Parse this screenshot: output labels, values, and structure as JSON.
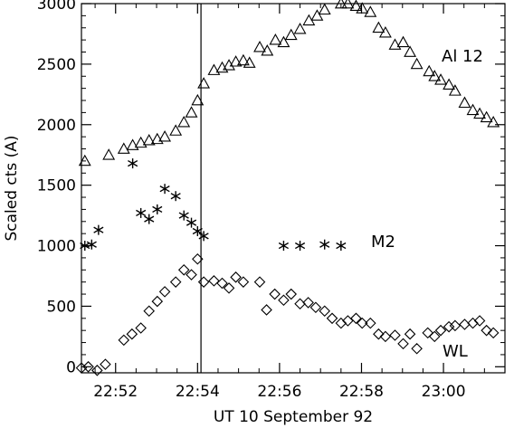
{
  "chart_data": {
    "type": "scatter",
    "title": "",
    "xlabel": "UT 10 September 92",
    "ylabel": "Scaled cts (A)",
    "xlim": [
      "22:51:10",
      "23:01:30"
    ],
    "ylim": [
      -50,
      3000
    ],
    "x_ticks": [
      "22:52",
      "22:54",
      "22:56",
      "22:58",
      "23:00"
    ],
    "y_ticks": [
      0,
      500,
      1000,
      1500,
      2000,
      2500,
      3000
    ],
    "grid": false,
    "vertical_line": "22:54:05",
    "series": [
      {
        "name": "Al 12",
        "marker": "triangle",
        "x": [
          "22:51:15",
          "22:51:50",
          "22:52:12",
          "22:52:25",
          "22:52:37",
          "22:52:49",
          "22:53:01",
          "22:53:12",
          "22:53:28",
          "22:53:40",
          "22:53:51",
          "22:54:00",
          "22:54:09",
          "22:54:24",
          "22:54:36",
          "22:54:46",
          "22:54:56",
          "22:55:07",
          "22:55:16",
          "22:55:31",
          "22:55:42",
          "22:55:54",
          "22:56:06",
          "22:56:17",
          "22:56:30",
          "22:56:43",
          "22:56:55",
          "22:57:06",
          "22:57:30",
          "22:57:40",
          "22:57:52",
          "22:58:01",
          "22:58:13",
          "22:58:25",
          "22:58:35",
          "22:58:49",
          "22:59:01",
          "22:59:11",
          "22:59:21",
          "22:59:39",
          "22:59:47",
          "22:59:56",
          "23:00:08",
          "23:00:17",
          "23:00:31",
          "23:00:43",
          "23:00:53",
          "23:01:03",
          "23:01:13"
        ],
        "values": [
          1700,
          1750,
          1800,
          1830,
          1850,
          1870,
          1880,
          1900,
          1950,
          2020,
          2100,
          2200,
          2340,
          2450,
          2470,
          2490,
          2520,
          2530,
          2510,
          2640,
          2610,
          2700,
          2680,
          2740,
          2790,
          2860,
          2900,
          2950,
          3000,
          3000,
          2980,
          2960,
          2930,
          2800,
          2760,
          2660,
          2680,
          2600,
          2500,
          2440,
          2400,
          2370,
          2330,
          2280,
          2180,
          2120,
          2090,
          2060,
          2020
        ]
      },
      {
        "name": "M2",
        "marker": "asterisk",
        "x": [
          "22:51:15",
          "22:51:25",
          "22:51:35",
          "22:52:25",
          "22:52:37",
          "22:52:49",
          "22:53:01",
          "22:53:12",
          "22:53:28",
          "22:53:40",
          "22:53:51",
          "22:54:00",
          "22:54:09",
          "22:56:06",
          "22:56:30",
          "22:57:06",
          "22:57:30"
        ],
        "values": [
          1000,
          1010,
          1130,
          1680,
          1270,
          1220,
          1300,
          1470,
          1410,
          1250,
          1190,
          1120,
          1080,
          1000,
          1000,
          1010,
          1000
        ]
      },
      {
        "name": "WL",
        "marker": "diamond",
        "x": [
          "22:51:10",
          "22:51:20",
          "22:51:33",
          "22:51:45",
          "22:52:12",
          "22:52:24",
          "22:52:37",
          "22:52:49",
          "22:53:01",
          "22:53:12",
          "22:53:28",
          "22:53:40",
          "22:53:51",
          "22:54:00",
          "22:54:09",
          "22:54:24",
          "22:54:36",
          "22:54:46",
          "22:54:56",
          "22:55:07",
          "22:55:31",
          "22:55:41",
          "22:55:53",
          "22:56:06",
          "22:56:17",
          "22:56:30",
          "22:56:42",
          "22:56:53",
          "22:57:06",
          "22:57:17",
          "22:57:30",
          "22:57:40",
          "22:57:52",
          "22:58:01",
          "22:58:13",
          "22:58:25",
          "22:58:35",
          "22:58:49",
          "22:59:01",
          "22:59:11",
          "22:59:21",
          "22:59:37",
          "22:59:47",
          "22:59:56",
          "23:00:08",
          "23:00:17",
          "23:00:31",
          "23:00:43",
          "23:00:53",
          "23:01:03",
          "23:01:13"
        ],
        "values": [
          -10,
          0,
          -30,
          20,
          220,
          270,
          320,
          460,
          540,
          620,
          700,
          800,
          760,
          890,
          700,
          710,
          690,
          650,
          740,
          700,
          700,
          470,
          600,
          550,
          600,
          520,
          530,
          490,
          460,
          400,
          360,
          380,
          400,
          360,
          360,
          270,
          250,
          260,
          190,
          270,
          150,
          280,
          250,
          300,
          330,
          340,
          350,
          360,
          380,
          300,
          280
        ]
      }
    ],
    "annotations": [
      "Al 12",
      "M2",
      "WL"
    ]
  }
}
